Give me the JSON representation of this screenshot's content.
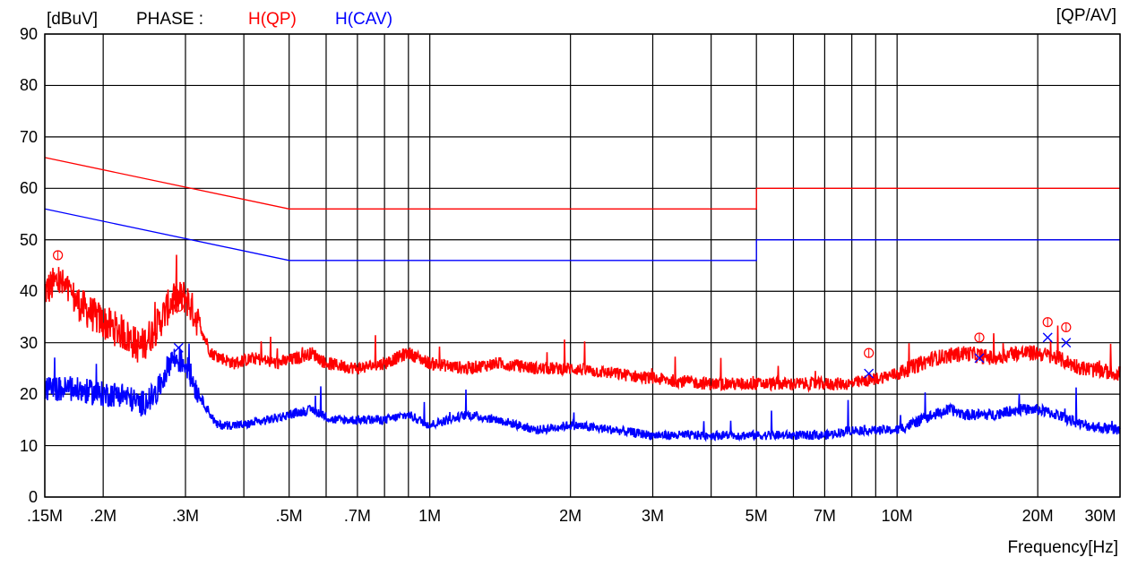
{
  "header": {
    "unit_label": "[dBuV]",
    "phase_label": "PHASE :",
    "qp_label": "H(QP)",
    "cav_label": "H(CAV)",
    "mode_label": "[QP/AV]"
  },
  "xaxis_label": "Frequency[Hz]",
  "colors": {
    "qp": "#ff0000",
    "cav": "#0000ff",
    "grid": "#000000"
  },
  "chart_data": {
    "type": "line",
    "xscale": "log",
    "xlim": [
      150000,
      30000000
    ],
    "ylim": [
      0,
      90
    ],
    "grid": true,
    "ylabel": "[dBuV]",
    "xlabel": "Frequency[Hz]",
    "y_ticks": [
      0,
      10,
      20,
      30,
      40,
      50,
      60,
      70,
      80,
      90
    ],
    "x_ticks": [
      {
        "value": 150000,
        "label": ".15M"
      },
      {
        "value": 200000,
        "label": ".2M"
      },
      {
        "value": 300000,
        "label": ".3M"
      },
      {
        "value": 500000,
        "label": ".5M"
      },
      {
        "value": 700000,
        "label": ".7M"
      },
      {
        "value": 1000000,
        "label": "1M"
      },
      {
        "value": 2000000,
        "label": "2M"
      },
      {
        "value": 3000000,
        "label": "3M"
      },
      {
        "value": 5000000,
        "label": "5M"
      },
      {
        "value": 7000000,
        "label": "7M"
      },
      {
        "value": 10000000,
        "label": "10M"
      },
      {
        "value": 20000000,
        "label": "20M"
      },
      {
        "value": 30000000,
        "label": "30M"
      }
    ],
    "x_gridlines": [
      150000,
      200000,
      300000,
      400000,
      500000,
      600000,
      700000,
      800000,
      900000,
      1000000,
      2000000,
      3000000,
      4000000,
      5000000,
      6000000,
      7000000,
      8000000,
      9000000,
      10000000,
      20000000,
      30000000
    ],
    "limits": [
      {
        "name": "H(QP)",
        "color": "#ff0000",
        "points": [
          [
            150000,
            66
          ],
          [
            500000,
            56
          ],
          [
            5000000,
            56
          ],
          [
            5000000,
            60
          ],
          [
            30000000,
            60
          ]
        ]
      },
      {
        "name": "H(CAV)",
        "color": "#0000ff",
        "points": [
          [
            150000,
            56
          ],
          [
            500000,
            46
          ],
          [
            5000000,
            46
          ],
          [
            5000000,
            50
          ],
          [
            30000000,
            50
          ]
        ]
      }
    ],
    "series": [
      {
        "name": "H(QP)",
        "color": "#ff0000",
        "base": [
          [
            150000,
            40
          ],
          [
            160000,
            42
          ],
          [
            180000,
            37
          ],
          [
            200000,
            34
          ],
          [
            220000,
            32
          ],
          [
            240000,
            29
          ],
          [
            260000,
            33
          ],
          [
            280000,
            38
          ],
          [
            300000,
            39
          ],
          [
            320000,
            34
          ],
          [
            340000,
            28
          ],
          [
            380000,
            26
          ],
          [
            420000,
            27
          ],
          [
            470000,
            26
          ],
          [
            520000,
            27
          ],
          [
            560000,
            28
          ],
          [
            600000,
            26
          ],
          [
            700000,
            25
          ],
          [
            800000,
            26
          ],
          [
            900000,
            28
          ],
          [
            1000000,
            26
          ],
          [
            1200000,
            25
          ],
          [
            1400000,
            26
          ],
          [
            1700000,
            25
          ],
          [
            2000000,
            25
          ],
          [
            2500000,
            24
          ],
          [
            3000000,
            23
          ],
          [
            4000000,
            22
          ],
          [
            5000000,
            22
          ],
          [
            6000000,
            22
          ],
          [
            7000000,
            22
          ],
          [
            8000000,
            22
          ],
          [
            9000000,
            23
          ],
          [
            10000000,
            24
          ],
          [
            12000000,
            27
          ],
          [
            14000000,
            28
          ],
          [
            16000000,
            27
          ],
          [
            18000000,
            28
          ],
          [
            20000000,
            28
          ],
          [
            22000000,
            27
          ],
          [
            25000000,
            25
          ],
          [
            30000000,
            24
          ]
        ]
      },
      {
        "name": "H(CAV)",
        "color": "#0000ff",
        "base": [
          [
            150000,
            21
          ],
          [
            170000,
            21
          ],
          [
            200000,
            20
          ],
          [
            220000,
            20
          ],
          [
            240000,
            18
          ],
          [
            260000,
            20
          ],
          [
            280000,
            27
          ],
          [
            300000,
            26
          ],
          [
            320000,
            20
          ],
          [
            350000,
            14
          ],
          [
            400000,
            14
          ],
          [
            450000,
            15
          ],
          [
            500000,
            16
          ],
          [
            560000,
            17
          ],
          [
            620000,
            15
          ],
          [
            700000,
            15
          ],
          [
            800000,
            15
          ],
          [
            900000,
            16
          ],
          [
            1000000,
            14
          ],
          [
            1200000,
            16
          ],
          [
            1400000,
            15
          ],
          [
            1700000,
            13
          ],
          [
            2000000,
            14
          ],
          [
            2500000,
            13
          ],
          [
            3000000,
            12
          ],
          [
            4000000,
            12
          ],
          [
            5000000,
            12
          ],
          [
            6000000,
            12
          ],
          [
            7000000,
            12
          ],
          [
            8000000,
            13
          ],
          [
            9000000,
            13
          ],
          [
            10000000,
            13
          ],
          [
            12000000,
            16
          ],
          [
            13000000,
            17
          ],
          [
            14000000,
            16
          ],
          [
            16000000,
            16
          ],
          [
            18000000,
            17
          ],
          [
            20000000,
            17
          ],
          [
            22000000,
            16
          ],
          [
            25000000,
            14
          ],
          [
            30000000,
            13
          ]
        ]
      }
    ],
    "qp_markers": [
      [
        160000,
        47
      ],
      [
        290000,
        37
      ],
      [
        8700000,
        28
      ],
      [
        15000000,
        31
      ],
      [
        21000000,
        34
      ],
      [
        23000000,
        33
      ]
    ],
    "av_markers": [
      [
        290000,
        29
      ],
      [
        8700000,
        24
      ],
      [
        15000000,
        27
      ],
      [
        21000000,
        31
      ],
      [
        23000000,
        30
      ]
    ]
  }
}
